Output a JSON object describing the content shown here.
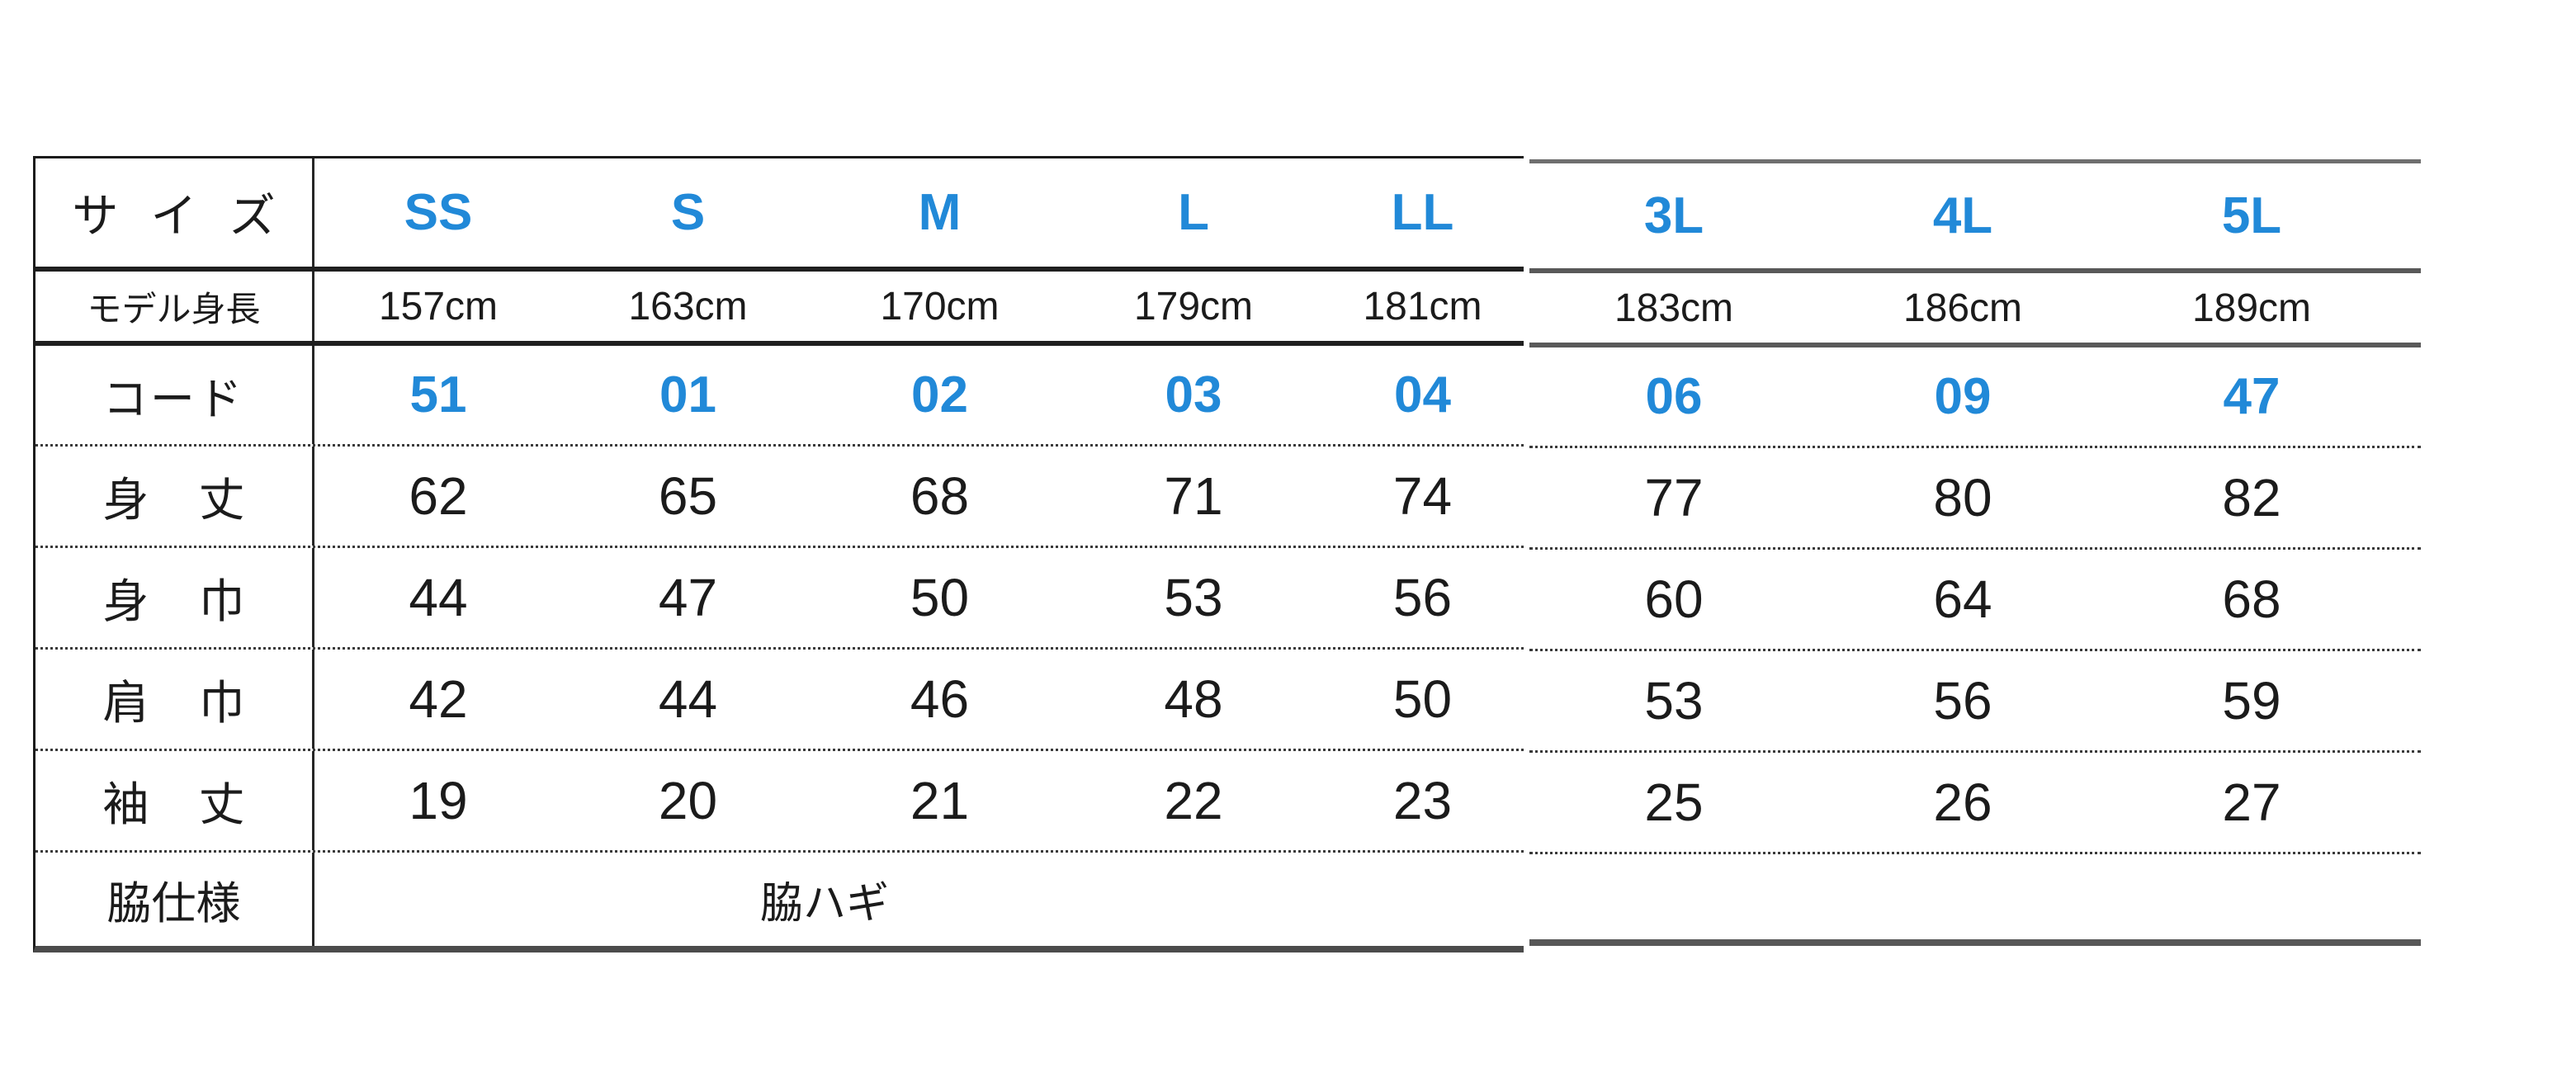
{
  "table": {
    "row_labels": {
      "size": "サ イ ズ",
      "model_height": "モデル身長",
      "code": "コード",
      "body_length": "身 丈",
      "body_width": "身 巾",
      "shoulder_width": "肩 巾",
      "sleeve_length": "袖 丈",
      "side_spec": "脇仕様"
    },
    "left_block": {
      "sizes": [
        "SS",
        "S",
        "M",
        "L",
        "LL"
      ],
      "model_heights": [
        "157cm",
        "163cm",
        "170cm",
        "179cm",
        "181cm"
      ],
      "codes": [
        "51",
        "01",
        "02",
        "03",
        "04"
      ],
      "body_length": [
        "62",
        "65",
        "68",
        "71",
        "74"
      ],
      "body_width": [
        "44",
        "47",
        "50",
        "53",
        "56"
      ],
      "shoulder_width": [
        "42",
        "44",
        "46",
        "48",
        "50"
      ],
      "sleeve_length": [
        "19",
        "20",
        "21",
        "22",
        "23"
      ],
      "side_spec_value": "脇ハギ"
    },
    "right_block": {
      "sizes": [
        "3L",
        "4L",
        "5L"
      ],
      "model_heights": [
        "183cm",
        "186cm",
        "189cm"
      ],
      "codes": [
        "06",
        "09",
        "47"
      ],
      "body_length": [
        "77",
        "80",
        "82"
      ],
      "body_width": [
        "60",
        "64",
        "68"
      ],
      "shoulder_width": [
        "53",
        "56",
        "59"
      ],
      "sleeve_length": [
        "25",
        "26",
        "27"
      ]
    },
    "colors": {
      "accent_blue": "#2189d8",
      "text_black": "#1b1b1b"
    }
  },
  "chart_data": {
    "type": "table",
    "title": "サイズ表",
    "columns": [
      "SS",
      "S",
      "M",
      "L",
      "LL",
      "3L",
      "4L",
      "5L"
    ],
    "rows": [
      {
        "label": "モデル身長",
        "values": [
          "157cm",
          "163cm",
          "170cm",
          "179cm",
          "181cm",
          "183cm",
          "186cm",
          "189cm"
        ]
      },
      {
        "label": "コード",
        "values": [
          "51",
          "01",
          "02",
          "03",
          "04",
          "06",
          "09",
          "47"
        ]
      },
      {
        "label": "身丈",
        "values": [
          62,
          65,
          68,
          71,
          74,
          77,
          80,
          82
        ]
      },
      {
        "label": "身巾",
        "values": [
          44,
          47,
          50,
          53,
          56,
          60,
          64,
          68
        ]
      },
      {
        "label": "肩巾",
        "values": [
          42,
          44,
          46,
          48,
          50,
          53,
          56,
          59
        ]
      },
      {
        "label": "袖丈",
        "values": [
          19,
          20,
          21,
          22,
          23,
          25,
          26,
          27
        ]
      },
      {
        "label": "脇仕様",
        "values": [
          "脇ハギ"
        ]
      }
    ]
  }
}
